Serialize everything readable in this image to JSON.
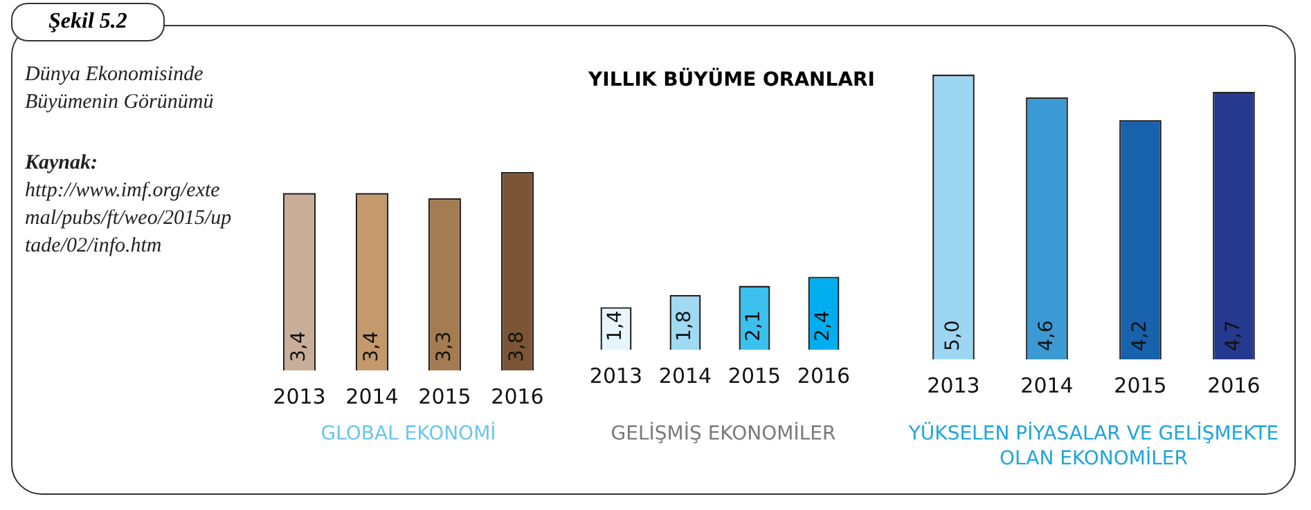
{
  "chart_data": [
    {
      "type": "bar",
      "xlabel": "GLOBAL EKONOMİ",
      "annotations": [
        "Şekil 5.2",
        "Dünya Ekonomisinde Büyümenin Görünümü",
        "Kaynak: http://www.imf.org/extemal/pubs/ft/weo/2015/uptade/02/info.htm"
      ],
      "categories": [
        "2013",
        "2014",
        "2015",
        "2016"
      ],
      "values": [
        3.4,
        3.4,
        3.3,
        3.8
      ],
      "value_labels": [
        "3,4",
        "3,4",
        "3,3",
        "3,8"
      ],
      "colors": [
        "#c8ad98",
        "#c49a6c",
        "#a57c52",
        "#7b5535"
      ]
    },
    {
      "type": "bar",
      "title": "YILLIK BÜYÜME ORANLARI",
      "xlabel": "GELİŞMİŞ EKONOMİLER",
      "categories": [
        "2013",
        "2014",
        "2015",
        "2016"
      ],
      "values": [
        1.4,
        1.8,
        2.1,
        2.4
      ],
      "value_labels": [
        "1,4",
        "1,8",
        "2,1",
        "2,4"
      ],
      "colors": [
        "#e6f5fb",
        "#9fd9f2",
        "#3cc0ee",
        "#00aeef"
      ]
    },
    {
      "type": "bar",
      "xlabel": "YÜKSELEN PİYASALAR VE GELİŞMEKTE OLAN EKONOMİLER",
      "categories": [
        "2013",
        "2014",
        "2015",
        "2016"
      ],
      "values": [
        5.0,
        4.6,
        4.2,
        4.7
      ],
      "value_labels": [
        "5,0",
        "4,6",
        "4,2",
        "4,7"
      ],
      "colors": [
        "#9dd6f2",
        "#3b9ad4",
        "#1761ad",
        "#253a8e"
      ]
    }
  ]
}
